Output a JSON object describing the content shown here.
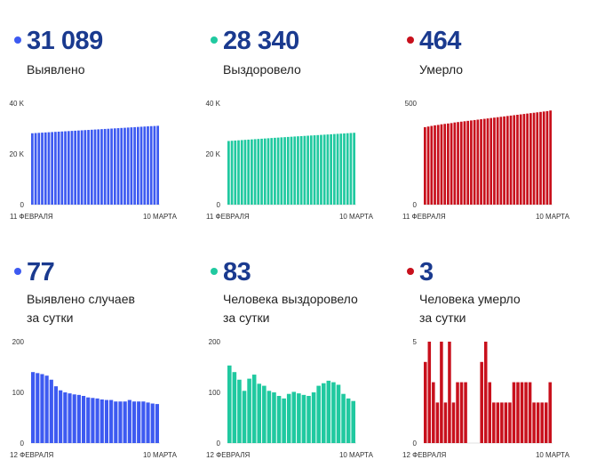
{
  "colors": {
    "blue": "#3d5af1",
    "green": "#20c9a0",
    "red": "#c8101c",
    "number": "#1a3a8f"
  },
  "panels": [
    {
      "number": "31 089",
      "label_lines": [
        "Выявлено"
      ]
    },
    {
      "number": "28 340",
      "label_lines": [
        "Выздоровело"
      ]
    },
    {
      "number": "464",
      "label_lines": [
        "Умерло"
      ]
    },
    {
      "number": "77",
      "label_lines": [
        "Выявлено случаев",
        "за сутки"
      ]
    },
    {
      "number": "83",
      "label_lines": [
        "Человека выздоровело",
        "за сутки"
      ]
    },
    {
      "number": "3",
      "label_lines": [
        "Человека умерло",
        "за сутки"
      ]
    }
  ],
  "chart_data": [
    {
      "type": "bar",
      "color": "blue",
      "ylim": [
        0,
        40000
      ],
      "yticks": [
        {
          "v": 0,
          "label": "0"
        },
        {
          "v": 20000,
          "label": "20 K"
        },
        {
          "v": 40000,
          "label": "40 K"
        }
      ],
      "x_start_label": "11 ФЕВРАЛЯ",
      "x_end_label": "10 МАРТА",
      "values": [
        28150,
        28230,
        28310,
        28390,
        28470,
        28550,
        28620,
        28700,
        28780,
        28850,
        28930,
        29010,
        29080,
        29160,
        29240,
        29310,
        29390,
        29460,
        29540,
        29620,
        29690,
        29770,
        29850,
        29920,
        30000,
        30080,
        30160,
        30240,
        30310,
        30400,
        30480,
        30560,
        30640,
        30720,
        30800,
        30880,
        30950,
        31012,
        31089
      ]
    },
    {
      "type": "bar",
      "color": "green",
      "ylim": [
        0,
        40000
      ],
      "yticks": [
        {
          "v": 0,
          "label": "0"
        },
        {
          "v": 20000,
          "label": "20 K"
        },
        {
          "v": 40000,
          "label": "40 K"
        }
      ],
      "x_start_label": "11 ФЕВРАЛЯ",
      "x_end_label": "10 МАРТА",
      "values": [
        25100,
        25190,
        25280,
        25370,
        25460,
        25550,
        25640,
        25730,
        25820,
        25910,
        26000,
        26090,
        26180,
        26270,
        26360,
        26440,
        26530,
        26610,
        26700,
        26780,
        26870,
        26950,
        27030,
        27110,
        27190,
        27270,
        27350,
        27430,
        27510,
        27590,
        27670,
        27760,
        27840,
        27920,
        28000,
        28080,
        28170,
        28257,
        28340
      ]
    },
    {
      "type": "bar",
      "color": "red",
      "ylim": [
        0,
        500
      ],
      "yticks": [
        {
          "v": 0,
          "label": "0"
        },
        {
          "v": 500,
          "label": "500"
        }
      ],
      "x_start_label": "11 ФЕВРАЛЯ",
      "x_end_label": "10 МАРТА",
      "values": [
        382,
        385,
        388,
        391,
        393,
        396,
        398,
        400,
        402,
        405,
        407,
        409,
        411,
        413,
        415,
        417,
        419,
        421,
        423,
        425,
        427,
        429,
        431,
        433,
        435,
        437,
        439,
        441,
        443,
        445,
        447,
        449,
        451,
        453,
        455,
        457,
        459,
        461,
        464
      ]
    },
    {
      "type": "bar",
      "color": "blue",
      "ylim": [
        0,
        200
      ],
      "yticks": [
        {
          "v": 0,
          "label": "0"
        },
        {
          "v": 100,
          "label": "100"
        },
        {
          "v": 200,
          "label": "200"
        }
      ],
      "x_start_label": "12 ФЕВРАЛЯ",
      "x_end_label": "10 МАРТА",
      "values": [
        140,
        138,
        136,
        133,
        125,
        112,
        104,
        100,
        98,
        96,
        95,
        93,
        90,
        89,
        88,
        86,
        85,
        85,
        82,
        82,
        82,
        85,
        82,
        82,
        82,
        80,
        78,
        77
      ]
    },
    {
      "type": "bar",
      "color": "green",
      "ylim": [
        0,
        200
      ],
      "yticks": [
        {
          "v": 0,
          "label": "0"
        },
        {
          "v": 100,
          "label": "100"
        },
        {
          "v": 200,
          "label": "200"
        }
      ],
      "x_start_label": "12 ФЕВРАЛЯ",
      "x_end_label": "10 МАРТА",
      "values": [
        153,
        140,
        125,
        103,
        127,
        135,
        117,
        113,
        103,
        100,
        93,
        88,
        97,
        101,
        98,
        95,
        93,
        100,
        113,
        118,
        123,
        120,
        115,
        97,
        88,
        83
      ]
    },
    {
      "type": "bar",
      "color": "red",
      "ylim": [
        0,
        5
      ],
      "yticks": [
        {
          "v": 0,
          "label": "0"
        },
        {
          "v": 5,
          "label": "5"
        }
      ],
      "x_start_label": "12 ФЕВРАЛЯ",
      "x_end_label": "10 МАРТА",
      "values": [
        4,
        5,
        3,
        2,
        5,
        2,
        5,
        2,
        3,
        3,
        3,
        0,
        0,
        0,
        4,
        5,
        3,
        2,
        2,
        2,
        2,
        2,
        3,
        3,
        3,
        3,
        3,
        2,
        2,
        2,
        2,
        3
      ]
    }
  ]
}
